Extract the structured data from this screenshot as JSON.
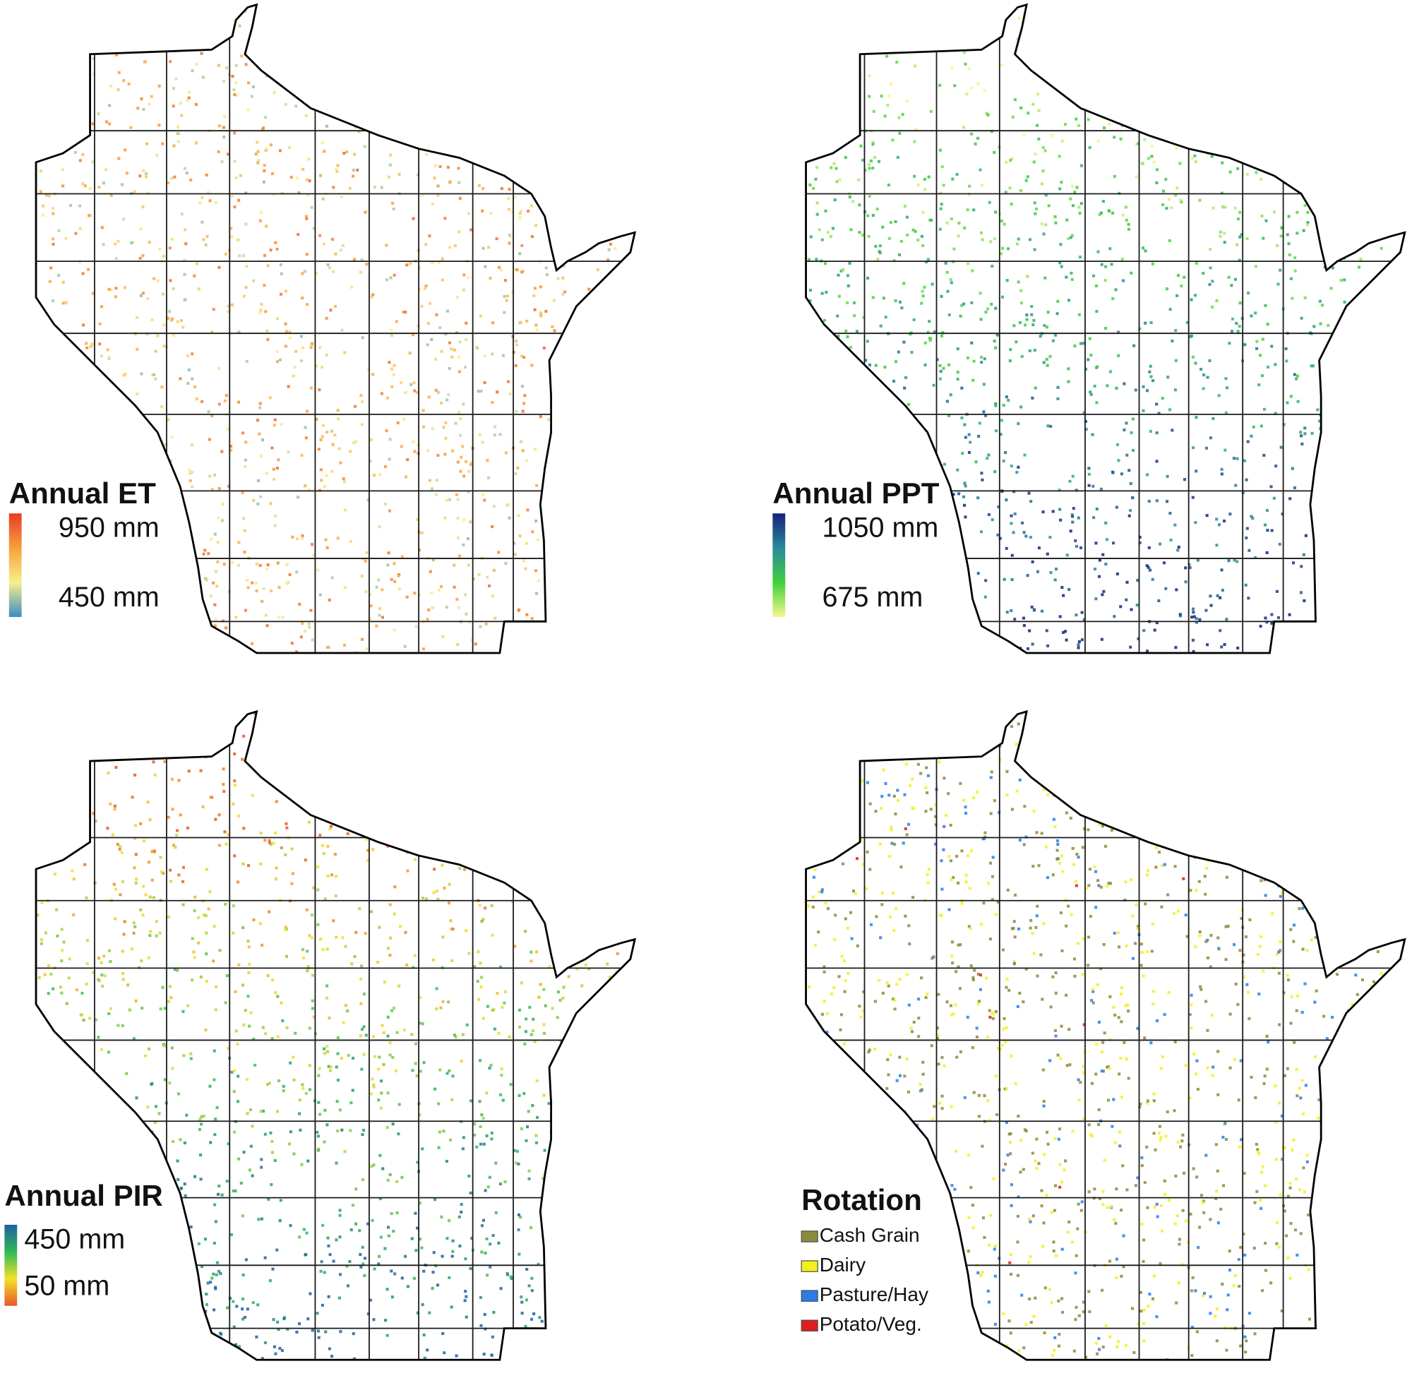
{
  "panels": [
    {
      "legend": {
        "title": "Annual ET",
        "max_label": "950 mm",
        "min_label": "450 mm",
        "colors": [
          "#e63b26",
          "#f7a03c",
          "#f6f08c",
          "#3c8cc4"
        ]
      }
    },
    {
      "legend": {
        "title": "Annual PPT",
        "max_label": "1050 mm",
        "min_label": "675 mm",
        "colors": [
          "#13217a",
          "#2a8a9a",
          "#3fd03a",
          "#f5f78a"
        ]
      }
    },
    {
      "legend": {
        "title": "Annual PIR",
        "max_label": "450 mm",
        "min_label": "50 mm",
        "colors": [
          "#1f5fa0",
          "#2fb85a",
          "#f2e22a",
          "#e8582a"
        ]
      }
    },
    {
      "legend": {
        "title": "Rotation",
        "items": [
          {
            "label": "Cash Grain",
            "color": "#8c8a3c"
          },
          {
            "label": "Dairy",
            "color": "#f4f01c"
          },
          {
            "label": "Pasture/Hay",
            "color": "#2a7de6"
          },
          {
            "label": "Potato/Veg.",
            "color": "#e01c1c"
          }
        ]
      }
    }
  ]
}
